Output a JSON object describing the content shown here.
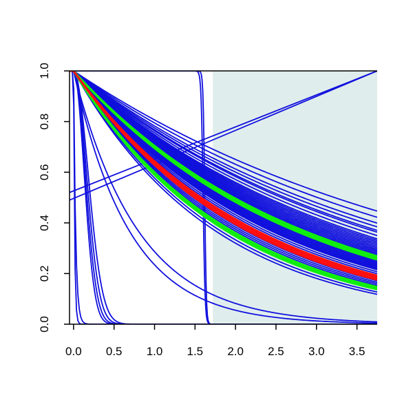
{
  "chart_data": {
    "type": "line",
    "title": "",
    "xlabel": "",
    "ylabel": "",
    "xlim": [
      -0.05,
      3.75
    ],
    "ylim": [
      0.0,
      1.0
    ],
    "grid": false,
    "legend": "none",
    "x_ticks": [
      0.0,
      0.5,
      1.0,
      1.5,
      2.0,
      2.5,
      3.0,
      3.5
    ],
    "x_tick_labels": [
      "0.0",
      "0.5",
      "1.0",
      "1.5",
      "2.0",
      "2.5",
      "3.0",
      "3.5"
    ],
    "y_ticks": [
      0.0,
      0.2,
      0.4,
      0.6,
      0.8,
      1.0
    ],
    "y_tick_labels": [
      "0.0",
      "0.2",
      "0.4",
      "0.6",
      "0.8",
      "1.0"
    ],
    "shaded_region": {
      "x_start": 1.72,
      "x_end": 3.75,
      "color": "#e0eded"
    },
    "colors": {
      "ensemble": "#1010dd",
      "highlight": "#ff1010",
      "bounds": "#10ee10",
      "axes": "#000000"
    },
    "ensemble_decay_rates": [
      0.215,
      0.23,
      0.245,
      0.255,
      0.265,
      0.27,
      0.28,
      0.29,
      0.295,
      0.3,
      0.305,
      0.31,
      0.315,
      0.32,
      0.325,
      0.33,
      0.335,
      0.34,
      0.345,
      0.35,
      0.355,
      0.36,
      0.365,
      0.37,
      0.375,
      0.38,
      0.385,
      0.39,
      0.395,
      0.4,
      0.405,
      0.41,
      0.42,
      0.43,
      0.44,
      0.45,
      0.46,
      0.47,
      0.48,
      0.49,
      0.5,
      0.51,
      0.52,
      0.53,
      0.55,
      0.57
    ],
    "fast_decay_rates": [
      1.25,
      1.45
    ],
    "very_fast_decays": [
      {
        "rate": 5.5,
        "power": 2
      },
      {
        "rate": 5.0,
        "power": 2
      },
      {
        "rate": 4.5,
        "power": 2
      },
      {
        "rate": 4.0,
        "power": 2
      },
      {
        "rate": 40.0,
        "power": 1
      },
      {
        "rate": 80.0,
        "power": 1
      }
    ],
    "step_curves": [
      {
        "center": 1.6,
        "width": 0.012,
        "range": [
          -0.05,
          1.72
        ]
      },
      {
        "center": 1.62,
        "width": 0.01,
        "range": [
          -0.05,
          1.76
        ]
      }
    ],
    "rising_lines": [
      {
        "x": [
          -0.05,
          3.75
        ],
        "y": [
          0.49,
          1.0
        ]
      },
      {
        "x": [
          -0.05,
          3.75
        ],
        "y": [
          0.52,
          1.0
        ]
      }
    ],
    "highlight_band_rates": [
      0.44,
      0.445,
      0.45,
      0.455,
      0.46,
      0.465
    ],
    "bounds_band_rates": [
      0.35,
      0.355,
      0.36,
      0.365,
      0.51,
      0.515,
      0.52,
      0.525,
      0.53
    ]
  }
}
